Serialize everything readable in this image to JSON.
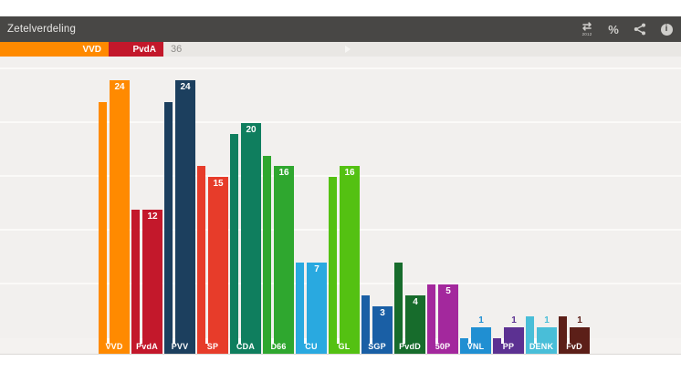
{
  "header": {
    "title": "Zetelverdeling"
  },
  "toolbar": {
    "compare_year": "2012",
    "compare_glyph": "⇄",
    "percent_glyph": "%",
    "info_glyph": "i",
    "icons": [
      "compare-2012",
      "percent",
      "share",
      "info"
    ]
  },
  "coalition_bar": {
    "total_seats": 150,
    "majority_seats": 76,
    "total_label": "36",
    "track_color": "#e9e7e4",
    "segments": [
      {
        "label": "VVD",
        "seats": 24,
        "color": "#ff8a00"
      },
      {
        "label": "PvdA",
        "seats": 12,
        "color": "#c3182b"
      }
    ]
  },
  "chart_data": {
    "type": "bar",
    "title": "Zetelverdeling",
    "unit": "seats",
    "total_seats": 150,
    "ylim": [
      0,
      26
    ],
    "gridline_step": 5,
    "gridlines": [
      5,
      10,
      15,
      20,
      25
    ],
    "legend_position": "none",
    "series_names": [
      "previous",
      "current"
    ],
    "parties": [
      {
        "label": "VVD",
        "color": "#ff8a00",
        "current": 24,
        "previous": 22,
        "value_label": "24",
        "value_label_position": "inside"
      },
      {
        "label": "PvdA",
        "color": "#c3182b",
        "current": 12,
        "previous": 12,
        "value_label": "12",
        "value_label_position": "inside"
      },
      {
        "label": "PVV",
        "color": "#1c3f5e",
        "current": 24,
        "previous": 22,
        "value_label": "24",
        "value_label_position": "inside"
      },
      {
        "label": "SP",
        "color": "#e73c2a",
        "current": 15,
        "previous": 16,
        "value_label": "15",
        "value_label_position": "inside"
      },
      {
        "label": "CDA",
        "color": "#0f7e5e",
        "current": 20,
        "previous": 19,
        "value_label": "20",
        "value_label_position": "inside"
      },
      {
        "label": "D66",
        "color": "#2fa72f",
        "current": 16,
        "previous": 17,
        "value_label": "16",
        "value_label_position": "inside"
      },
      {
        "label": "CU",
        "color": "#29a9e0",
        "current": 7,
        "previous": 7,
        "value_label": "7",
        "value_label_position": "inside"
      },
      {
        "label": "GL",
        "color": "#54c112",
        "current": 16,
        "previous": 15,
        "value_label": "16",
        "value_label_position": "inside"
      },
      {
        "label": "SGP",
        "color": "#1a5fa5",
        "current": 3,
        "previous": 4,
        "value_label": "3",
        "value_label_position": "inside"
      },
      {
        "label": "PvdD",
        "color": "#176c2c",
        "current": 4,
        "previous": 7,
        "value_label": "4",
        "value_label_position": "inside"
      },
      {
        "label": "50P",
        "color": "#a3289d",
        "current": 5,
        "previous": 5,
        "value_label": "5",
        "value_label_position": "inside"
      },
      {
        "label": "VNL",
        "color": "#208fd2",
        "current": 1,
        "previous": 0,
        "value_label": "1",
        "value_label_position": "above"
      },
      {
        "label": "PP",
        "color": "#5c3192",
        "current": 1,
        "previous": 0,
        "value_label": "1",
        "value_label_position": "above"
      },
      {
        "label": "DENK",
        "color": "#49bed8",
        "current": 1,
        "previous": 2,
        "value_label": "1",
        "value_label_position": "above"
      },
      {
        "label": "FvD",
        "color": "#5c1f18",
        "current": 1,
        "previous": 2,
        "value_label": "1",
        "value_label_position": "above"
      }
    ]
  }
}
